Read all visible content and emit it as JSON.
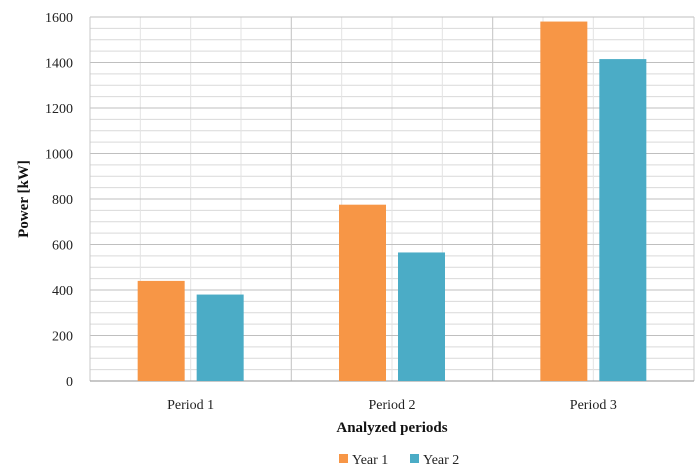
{
  "chart_data": {
    "type": "bar",
    "title": "",
    "xlabel": "Analyzed periods",
    "ylabel": "Power [kW]",
    "categories": [
      "Period 1",
      "Period 2",
      "Period 3"
    ],
    "series": [
      {
        "name": "Year 1",
        "color": "#f79646",
        "values": [
          440,
          775,
          1580
        ]
      },
      {
        "name": "Year 2",
        "color": "#4bacc6",
        "values": [
          380,
          565,
          1415
        ]
      }
    ],
    "ylim": [
      0,
      1600
    ],
    "yticks": [
      "0",
      "200",
      "400",
      "600",
      "800",
      "1000",
      "1200",
      "1400",
      "1600"
    ],
    "ytick_values": [
      0,
      200,
      400,
      600,
      800,
      1000,
      1200,
      1400,
      1600
    ],
    "minor_grid_step": 50,
    "grid": true,
    "legend_position": "bottom"
  }
}
